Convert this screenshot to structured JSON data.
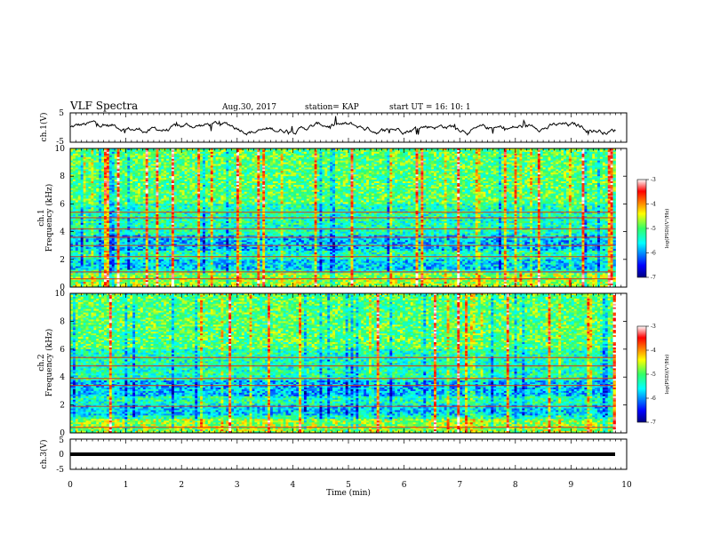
{
  "header": {
    "title": "VLF Spectra",
    "date": "Aug.30, 2017",
    "station": "station= KAP",
    "start": "start  UT =   16: 10: 1"
  },
  "chart_data": [
    {
      "type": "line",
      "panel": "ch1-waveform",
      "ylabel": "ch.1(V)",
      "ylim": [
        -5,
        5
      ],
      "yticks": [
        "5",
        "-5"
      ],
      "xlim": [
        0,
        10
      ],
      "x_extent_min": 9.8,
      "note_values": "noisy voltage trace ranging roughly -3 to 3 V"
    },
    {
      "type": "heatmap",
      "panel": "ch1-spectrogram",
      "ylabel": "ch.1  Frequency (kHz)",
      "ylim": [
        0,
        10
      ],
      "yticks": [
        "0",
        "2",
        "4",
        "6",
        "8",
        "10"
      ],
      "xlim": [
        0,
        10
      ],
      "colorbar": {
        "label": "log(PSD)(V²/Hz)",
        "range": [
          -7,
          -3
        ],
        "ticks": [
          "-3",
          "-4",
          "-5",
          "-6",
          "-7"
        ]
      },
      "horizontal_lines_khz": [
        0.6,
        1.1,
        2.2,
        3.0,
        3.6,
        4.2,
        5.0,
        5.4
      ]
    },
    {
      "type": "heatmap",
      "panel": "ch2-spectrogram",
      "ylabel": "ch.2  Frequency (kHz)",
      "ylim": [
        0,
        10
      ],
      "yticks": [
        "0",
        "2",
        "4",
        "6",
        "8",
        "10"
      ],
      "xlim": [
        0,
        10
      ],
      "colorbar": {
        "label": "log(PSD)(V²/Hz)",
        "range": [
          -7,
          -3
        ],
        "ticks": [
          "-3",
          "-4",
          "-5",
          "-6",
          "-7"
        ]
      },
      "horizontal_lines_khz": [
        0.4,
        1.9,
        3.4,
        3.9,
        4.8,
        5.4
      ]
    },
    {
      "type": "line",
      "panel": "ch3-waveform",
      "ylabel": "ch.3(V)",
      "ylim": [
        -5,
        5
      ],
      "yticks": [
        "5",
        "0",
        "-5"
      ],
      "xlim": [
        0,
        10
      ],
      "constant_value": 0
    }
  ],
  "xaxis": {
    "label": "Time  (min)",
    "ticks": [
      "0",
      "1",
      "2",
      "3",
      "4",
      "5",
      "6",
      "7",
      "8",
      "9",
      "10"
    ]
  },
  "colors": {
    "frame": "#000000",
    "trace": "#000000"
  }
}
